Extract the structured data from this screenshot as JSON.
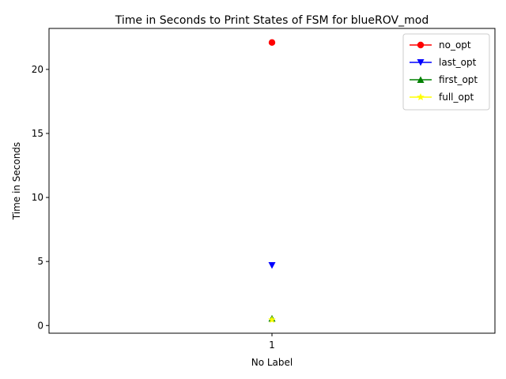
{
  "chart_data": {
    "type": "line",
    "title": "Time in Seconds to Print States of FSM for blueROV_mod",
    "xlabel": "No Label",
    "ylabel": "Time in Seconds",
    "categories": [
      "1"
    ],
    "x": [
      1
    ],
    "xlim": [
      0.5,
      1.5
    ],
    "ylim": [
      -0.6,
      23.2
    ],
    "yticks": [
      0,
      5,
      10,
      15,
      20
    ],
    "grid": false,
    "legend_position": "top-right",
    "series": [
      {
        "name": "no_opt",
        "values": [
          22.1
        ],
        "color": "#ff0000",
        "marker": "circle"
      },
      {
        "name": "last_opt",
        "values": [
          4.7
        ],
        "color": "#0000ff",
        "marker": "triangle-down"
      },
      {
        "name": "first_opt",
        "values": [
          0.55
        ],
        "color": "#008000",
        "marker": "triangle-up"
      },
      {
        "name": "full_opt",
        "values": [
          0.45
        ],
        "color": "#ffff00",
        "marker": "star"
      }
    ]
  }
}
